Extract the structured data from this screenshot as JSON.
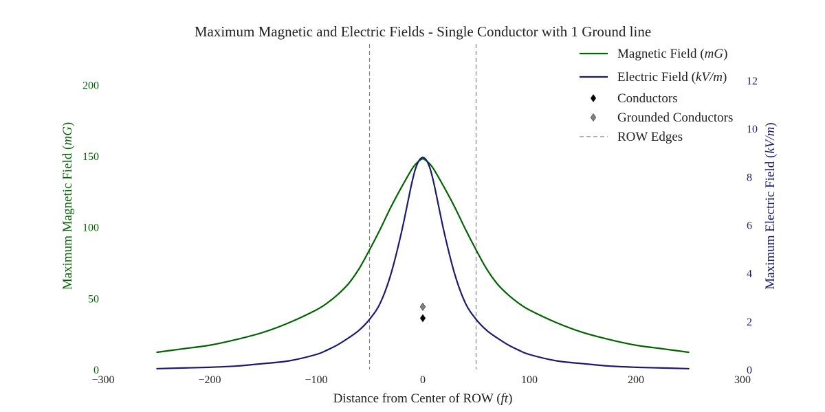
{
  "chart_data": {
    "type": "line",
    "title": "Maximum Magnetic and Electric Fields - Single Conductor with 1 Ground line",
    "xlabel": "Distance from Center of ROW (ft)",
    "xlabel_main": "Distance from Center of ROW",
    "xlabel_unit": "ft",
    "ylabel_left": "Maximum Magnetic Field (mG)",
    "ylabel_left_main": "Maximum Magnetic Field",
    "ylabel_left_unit": "mG",
    "ylabel_right": "Maximum Electric Field (kV/m)",
    "ylabel_right_main": "Maximum Electric Field",
    "ylabel_right_unit": "kV/m",
    "xlim": [
      -300,
      300
    ],
    "ylim_left": [
      0,
      220
    ],
    "ylim_right": [
      0,
      13
    ],
    "x_ticks": [
      "−300",
      "−200",
      "−100",
      "0",
      "100",
      "200",
      "300"
    ],
    "x_tick_values": [
      -300,
      -200,
      -100,
      0,
      100,
      200,
      300
    ],
    "y_left_ticks": [
      "0",
      "50",
      "100",
      "150",
      "200"
    ],
    "y_left_tick_values": [
      0,
      50,
      100,
      150,
      200
    ],
    "y_right_ticks": [
      "0",
      "2",
      "4",
      "6",
      "8",
      "10",
      "12"
    ],
    "y_right_tick_values": [
      0,
      2,
      4,
      6,
      8,
      10,
      12
    ],
    "grid": false,
    "legend_position": "top-right",
    "series": [
      {
        "name": "Magnetic Field (mG)",
        "axis": "left",
        "color": "#006400",
        "x": [
          -250,
          -225,
          -200,
          -175,
          -150,
          -125,
          -100,
          -90,
          -80,
          -70,
          -60,
          -50,
          -40,
          -30,
          -20,
          -10,
          -5,
          0,
          5,
          10,
          20,
          30,
          40,
          50,
          60,
          70,
          80,
          90,
          100,
          125,
          150,
          175,
          200,
          225,
          250
        ],
        "values": [
          12.0,
          14.5,
          17.0,
          21.0,
          26.0,
          33.0,
          41.8,
          46.5,
          52.5,
          60.0,
          70.5,
          84.0,
          98.5,
          114.0,
          128.0,
          141.0,
          145.5,
          148.0,
          145.5,
          141.0,
          128.0,
          114.0,
          98.5,
          84.0,
          70.5,
          60.0,
          52.5,
          46.5,
          41.8,
          33.0,
          26.0,
          21.0,
          17.0,
          14.5,
          12.0
        ]
      },
      {
        "name": "Electric Field (kV/m)",
        "axis": "right",
        "color": "#191970",
        "x": [
          -250,
          -225,
          -200,
          -175,
          -150,
          -125,
          -100,
          -90,
          -80,
          -70,
          -60,
          -50,
          -40,
          -30,
          -20,
          -10,
          -5,
          0,
          5,
          10,
          20,
          30,
          40,
          50,
          60,
          70,
          80,
          90,
          100,
          125,
          150,
          175,
          200,
          225,
          250
        ],
        "values": [
          0.03,
          0.06,
          0.09,
          0.14,
          0.24,
          0.36,
          0.62,
          0.8,
          1.02,
          1.3,
          1.62,
          2.08,
          2.75,
          3.95,
          5.7,
          7.8,
          8.55,
          8.8,
          8.55,
          7.8,
          5.7,
          3.95,
          2.75,
          2.08,
          1.62,
          1.3,
          1.02,
          0.8,
          0.62,
          0.36,
          0.24,
          0.14,
          0.09,
          0.06,
          0.03
        ]
      }
    ],
    "markers": [
      {
        "name": "Conductors",
        "x": 0,
        "y": 36,
        "axis": "left",
        "color": "#000000"
      },
      {
        "name": "Grounded Conductors",
        "x": 0,
        "y": 44,
        "axis": "left",
        "color": "#808080"
      }
    ],
    "row_edges": {
      "name": "ROW Edges",
      "x": [
        -50,
        50
      ],
      "color": "#808080"
    },
    "legend": [
      {
        "label_main": "Magnetic Field",
        "label_unit": "mG",
        "type": "line",
        "color": "#006400"
      },
      {
        "label_main": "Electric Field",
        "label_unit": "kV/m",
        "type": "line",
        "color": "#191970"
      },
      {
        "label_main": "Conductors",
        "label_unit": "",
        "type": "diamond",
        "color": "#000000"
      },
      {
        "label_main": "Grounded Conductors",
        "label_unit": "",
        "type": "diamond",
        "color": "#808080"
      },
      {
        "label_main": "ROW Edges",
        "label_unit": "",
        "type": "dashed",
        "color": "#808080"
      }
    ]
  }
}
